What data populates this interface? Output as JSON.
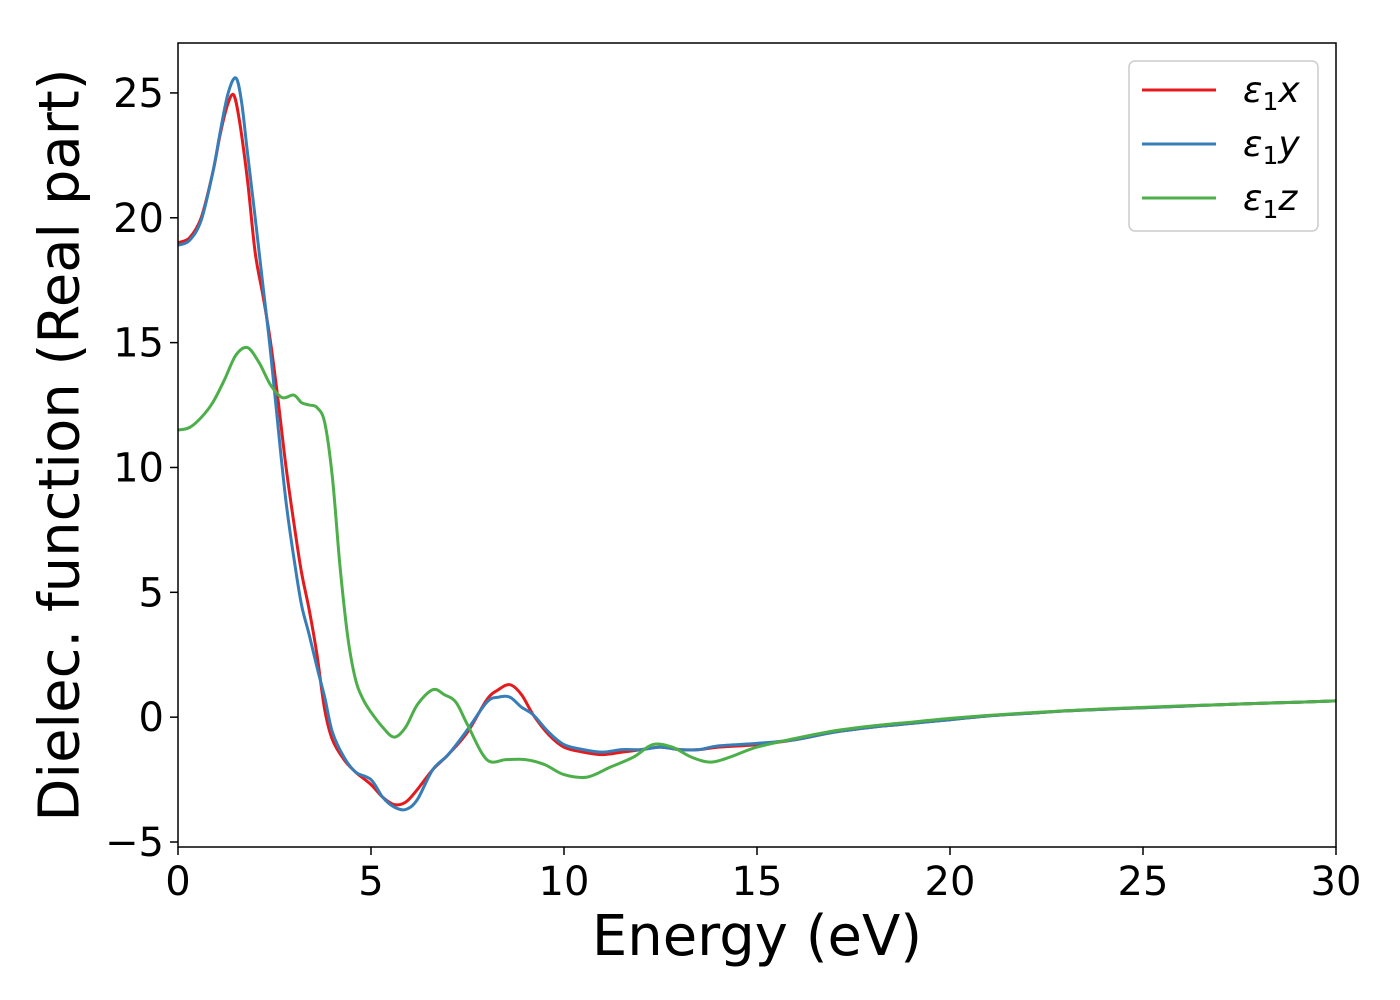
{
  "chart_data": {
    "type": "line",
    "title": "",
    "xlabel": "Energy (eV)",
    "ylabel": "Dielec. function (Real part)",
    "xlim": [
      0,
      30
    ],
    "ylim": [
      -5.2,
      27
    ],
    "xticks": [
      0,
      5,
      10,
      15,
      20,
      25,
      30
    ],
    "yticks": [
      -5,
      0,
      5,
      10,
      15,
      20,
      25
    ],
    "grid": false,
    "legend_position": "top-right",
    "series": [
      {
        "name": "ε₁x",
        "legend": {
          "base": "ε",
          "sub": "1",
          "var": "x"
        },
        "color": "#e41a1c",
        "x": [
          0,
          0.3,
          0.6,
          0.9,
          1.1,
          1.3,
          1.45,
          1.6,
          1.8,
          2.0,
          2.2,
          2.4,
          2.6,
          2.8,
          3.0,
          3.2,
          3.4,
          3.6,
          3.8,
          4.0,
          4.3,
          4.6,
          5.0,
          5.3,
          5.6,
          5.9,
          6.2,
          6.6,
          7.0,
          7.5,
          8.0,
          8.3,
          8.6,
          8.9,
          9.2,
          9.6,
          10.0,
          10.5,
          11.0,
          11.5,
          12.0,
          12.5,
          13.0,
          13.5,
          14.0,
          15.0,
          16.0,
          17.0,
          18.0,
          19.0,
          20.0,
          21.0,
          22.0,
          23.0,
          24.0,
          25.0,
          26.0,
          27.0,
          28.0,
          29.0,
          30.0
        ],
        "y": [
          19.0,
          19.2,
          20.0,
          21.8,
          23.4,
          24.6,
          24.9,
          23.8,
          21.5,
          18.6,
          16.9,
          15.0,
          12.6,
          10.0,
          7.8,
          5.8,
          4.3,
          2.5,
          0.3,
          -0.9,
          -1.7,
          -2.2,
          -2.7,
          -3.2,
          -3.5,
          -3.4,
          -2.9,
          -2.1,
          -1.5,
          -0.6,
          0.7,
          1.1,
          1.3,
          0.9,
          0.1,
          -0.7,
          -1.2,
          -1.4,
          -1.5,
          -1.4,
          -1.3,
          -1.2,
          -1.3,
          -1.3,
          -1.2,
          -1.1,
          -0.9,
          -0.6,
          -0.4,
          -0.25,
          -0.1,
          0.05,
          0.15,
          0.25,
          0.32,
          0.38,
          0.44,
          0.5,
          0.55,
          0.6,
          0.65
        ]
      },
      {
        "name": "ε₁y",
        "legend": {
          "base": "ε",
          "sub": "1",
          "var": "y"
        },
        "color": "#377eb8",
        "x": [
          0,
          0.3,
          0.6,
          0.9,
          1.1,
          1.3,
          1.5,
          1.65,
          1.8,
          2.0,
          2.2,
          2.4,
          2.6,
          2.8,
          3.0,
          3.2,
          3.4,
          3.6,
          3.8,
          4.0,
          4.3,
          4.6,
          5.0,
          5.3,
          5.6,
          5.9,
          6.2,
          6.6,
          7.0,
          7.5,
          8.0,
          8.3,
          8.6,
          8.9,
          9.2,
          9.6,
          10.0,
          10.5,
          11.0,
          11.5,
          12.0,
          12.5,
          13.0,
          13.5,
          14.0,
          15.0,
          16.0,
          17.0,
          18.0,
          19.0,
          20.0,
          21.0,
          22.0,
          23.0,
          24.0,
          25.0,
          26.0,
          27.0,
          28.0,
          29.0,
          30.0
        ],
        "y": [
          18.9,
          19.1,
          19.9,
          21.8,
          23.5,
          25.0,
          25.6,
          24.6,
          22.6,
          20.0,
          17.3,
          14.6,
          11.5,
          8.6,
          6.4,
          4.5,
          3.3,
          2.0,
          0.8,
          -0.6,
          -1.6,
          -2.2,
          -2.5,
          -3.2,
          -3.6,
          -3.7,
          -3.3,
          -2.1,
          -1.5,
          -0.5,
          0.6,
          0.8,
          0.8,
          0.4,
          0.1,
          -0.6,
          -1.1,
          -1.3,
          -1.4,
          -1.3,
          -1.3,
          -1.2,
          -1.3,
          -1.3,
          -1.15,
          -1.05,
          -0.9,
          -0.6,
          -0.4,
          -0.25,
          -0.1,
          0.05,
          0.15,
          0.25,
          0.32,
          0.38,
          0.44,
          0.5,
          0.55,
          0.6,
          0.65
        ]
      },
      {
        "name": "ε₁z",
        "legend": {
          "base": "ε",
          "sub": "1",
          "var": "z"
        },
        "color": "#4daf4a",
        "x": [
          0,
          0.3,
          0.6,
          0.9,
          1.2,
          1.5,
          1.8,
          2.1,
          2.4,
          2.7,
          3.0,
          3.2,
          3.4,
          3.6,
          3.8,
          4.0,
          4.2,
          4.4,
          4.6,
          4.8,
          5.0,
          5.3,
          5.6,
          5.9,
          6.2,
          6.6,
          6.9,
          7.2,
          7.5,
          8.0,
          8.5,
          9.0,
          9.5,
          10.0,
          10.6,
          11.2,
          11.8,
          12.3,
          12.8,
          13.3,
          13.8,
          14.3,
          15.0,
          16.0,
          17.0,
          18.0,
          19.0,
          20.0,
          21.0,
          22.0,
          23.0,
          24.0,
          25.0,
          26.0,
          27.0,
          28.0,
          29.0,
          30.0
        ],
        "y": [
          11.5,
          11.6,
          12.0,
          12.6,
          13.5,
          14.5,
          14.8,
          14.2,
          13.3,
          12.8,
          12.9,
          12.6,
          12.5,
          12.4,
          11.8,
          9.6,
          6.0,
          3.2,
          1.5,
          0.7,
          0.2,
          -0.4,
          -0.8,
          -0.4,
          0.5,
          1.1,
          0.9,
          0.6,
          -0.3,
          -1.7,
          -1.7,
          -1.7,
          -1.9,
          -2.3,
          -2.4,
          -2.0,
          -1.6,
          -1.1,
          -1.2,
          -1.6,
          -1.8,
          -1.6,
          -1.2,
          -0.85,
          -0.55,
          -0.35,
          -0.2,
          -0.05,
          0.07,
          0.17,
          0.26,
          0.33,
          0.39,
          0.45,
          0.5,
          0.55,
          0.6,
          0.65
        ]
      }
    ]
  }
}
